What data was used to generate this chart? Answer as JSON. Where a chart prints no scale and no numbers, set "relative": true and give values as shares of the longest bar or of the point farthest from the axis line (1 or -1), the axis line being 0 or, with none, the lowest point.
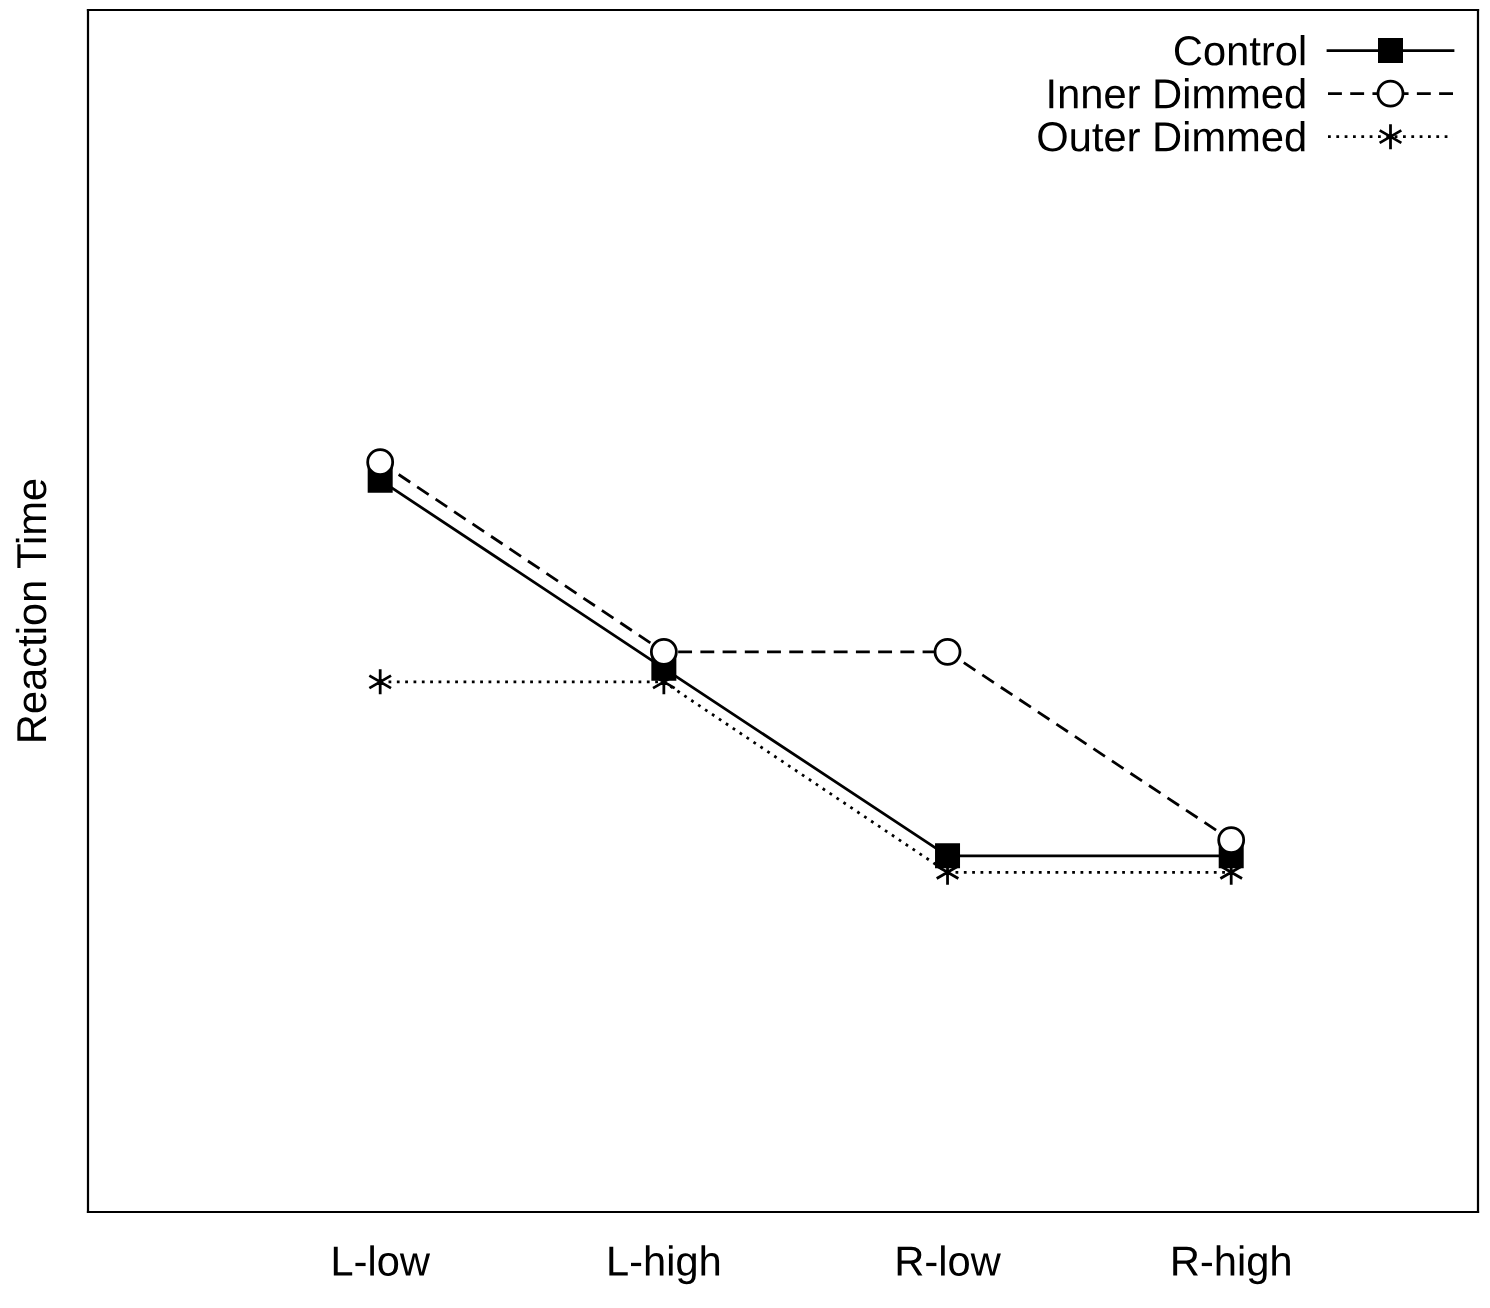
{
  "chart_data": {
    "type": "line",
    "ylabel": "Reaction Time",
    "relative": true,
    "categories": [
      "L-low",
      "L-high",
      "R-low",
      "R-high"
    ],
    "legend": "top right",
    "grid": false,
    "series": [
      {
        "name": "Control",
        "color": "#000000",
        "marker": "square",
        "line_style": "solid",
        "values": [
          0.976,
          0.725,
          0.475,
          0.475
        ]
      },
      {
        "name": "Inner Dimmed",
        "color": "#000000",
        "marker": "circle",
        "line_style": "dashed",
        "values": [
          1,
          0.747,
          0.747,
          0.496
        ]
      },
      {
        "name": "Outer Dimmed",
        "color": "#000000",
        "marker": "cross",
        "line_style": "dotted",
        "values": [
          0.707,
          0.707,
          0.453,
          0.453
        ]
      }
    ]
  }
}
